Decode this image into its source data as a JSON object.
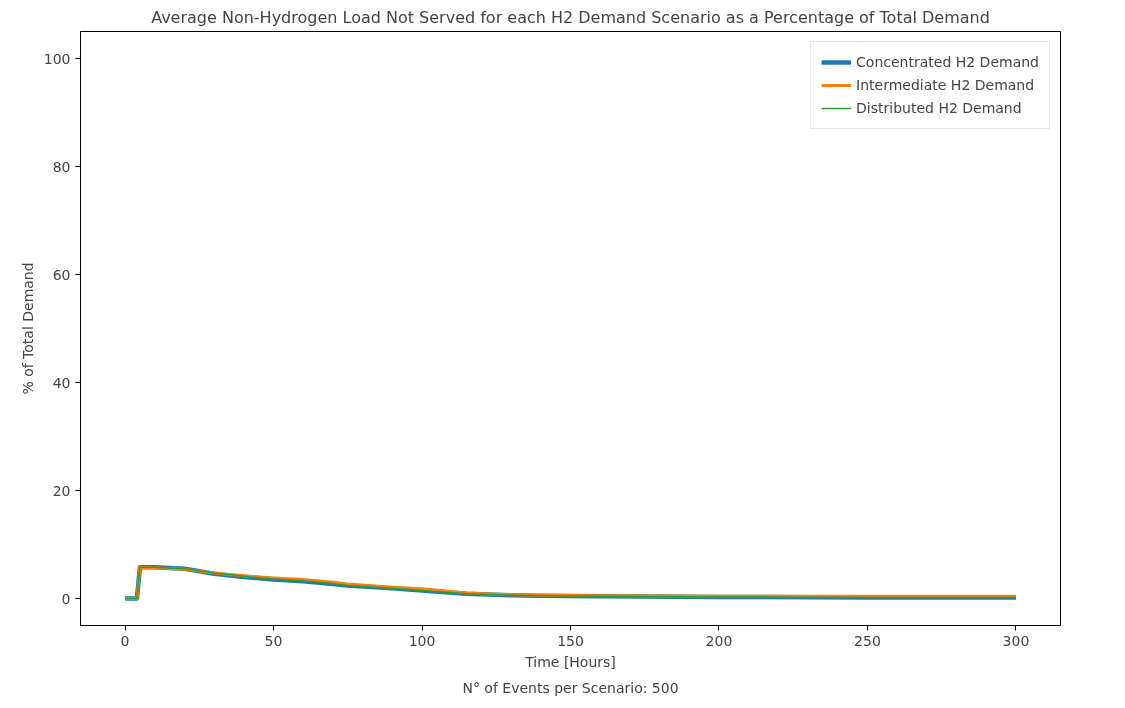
{
  "chart_data": {
    "type": "line",
    "title": "Average Non-Hydrogen Load Not Served for each H2 Demand Scenario as a Percentage of Total Demand",
    "xlabel": "Time [Hours]",
    "ylabel": "% of Total Demand",
    "annotations": [
      "N° of Events per Scenario: 500"
    ],
    "x": [
      0,
      4,
      5,
      10,
      20,
      30,
      40,
      50,
      60,
      70,
      75,
      90,
      100,
      115,
      130,
      140,
      160,
      200,
      250,
      300
    ],
    "series": [
      {
        "name": "Concentrated H2 Demand",
        "color": "#1f77b4",
        "values": [
          0,
          0,
          5.8,
          5.8,
          5.5,
          4.6,
          4.0,
          3.5,
          3.2,
          2.7,
          2.4,
          1.9,
          1.5,
          0.9,
          0.6,
          0.5,
          0.4,
          0.3,
          0.2,
          0.2
        ]
      },
      {
        "name": "Intermediate H2 Demand",
        "color": "#ff7f0e",
        "values": [
          0,
          0,
          5.8,
          5.7,
          5.4,
          4.7,
          4.2,
          3.8,
          3.5,
          3.0,
          2.7,
          2.1,
          1.8,
          1.0,
          0.7,
          0.6,
          0.5,
          0.4,
          0.4,
          0.4
        ]
      },
      {
        "name": "Distributed H2 Demand",
        "color": "#2ca02c",
        "values": [
          0,
          0,
          5.8,
          5.8,
          5.5,
          4.7,
          4.1,
          3.6,
          3.3,
          2.8,
          2.4,
          1.9,
          1.5,
          0.9,
          0.6,
          0.5,
          0.4,
          0.3,
          0.2,
          0.2
        ]
      }
    ],
    "xlim": [
      -15,
      315
    ],
    "ylim": [
      -5,
      105
    ],
    "xticks": [
      0,
      50,
      100,
      150,
      200,
      250,
      300
    ],
    "yticks": [
      0,
      20,
      40,
      60,
      80,
      100
    ],
    "grid": false,
    "legend": "top right",
    "line_style": "solid",
    "marker": "none"
  }
}
